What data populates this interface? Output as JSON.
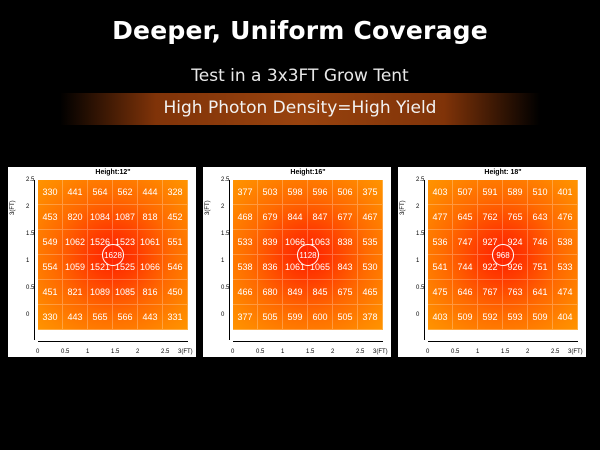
{
  "header": {
    "title": "Deeper, Uniform Coverage",
    "subtitle": "Test in a 3x3FT Grow Tent",
    "tagline": "High Photon Density=High Yield"
  },
  "panels": [
    {
      "title": "Height:12\"",
      "center": "1628",
      "rows": [
        [
          "330",
          "441",
          "564",
          "562",
          "444",
          "328"
        ],
        [
          "453",
          "820",
          "1084",
          "1087",
          "818",
          "452"
        ],
        [
          "549",
          "1062",
          "1526",
          "1523",
          "1061",
          "551"
        ],
        [
          "554",
          "1059",
          "1521",
          "1525",
          "1066",
          "546"
        ],
        [
          "451",
          "821",
          "1089",
          "1085",
          "816",
          "450"
        ],
        [
          "330",
          "443",
          "565",
          "566",
          "443",
          "331"
        ]
      ]
    },
    {
      "title": "Height:16\"",
      "center": "1128",
      "rows": [
        [
          "377",
          "503",
          "598",
          "596",
          "506",
          "375"
        ],
        [
          "468",
          "679",
          "844",
          "847",
          "677",
          "467"
        ],
        [
          "533",
          "839",
          "1066",
          "1063",
          "838",
          "535"
        ],
        [
          "538",
          "836",
          "1061",
          "1065",
          "843",
          "530"
        ],
        [
          "466",
          "680",
          "849",
          "845",
          "675",
          "465"
        ],
        [
          "377",
          "505",
          "599",
          "600",
          "505",
          "378"
        ]
      ]
    },
    {
      "title": "Height: 18\"",
      "center": "968",
      "rows": [
        [
          "403",
          "507",
          "591",
          "589",
          "510",
          "401"
        ],
        [
          "477",
          "645",
          "762",
          "765",
          "643",
          "476"
        ],
        [
          "536",
          "747",
          "927",
          "924",
          "746",
          "538"
        ],
        [
          "541",
          "744",
          "922",
          "926",
          "751",
          "533"
        ],
        [
          "475",
          "646",
          "767",
          "763",
          "641",
          "474"
        ],
        [
          "403",
          "509",
          "592",
          "593",
          "509",
          "404"
        ]
      ]
    }
  ],
  "axes": {
    "ylabel": "3(FT)",
    "xlabel_end": "3(FT)",
    "yticks": [
      "2.5",
      "2",
      "1.5",
      "1",
      "0.5",
      "0"
    ],
    "xticks": [
      "0",
      "0.5",
      "1",
      "1.5",
      "2",
      "2.5"
    ]
  },
  "colors": {
    "background": "#000000",
    "heat_hot": "#ff2200",
    "heat_cool": "#ff9400"
  }
}
